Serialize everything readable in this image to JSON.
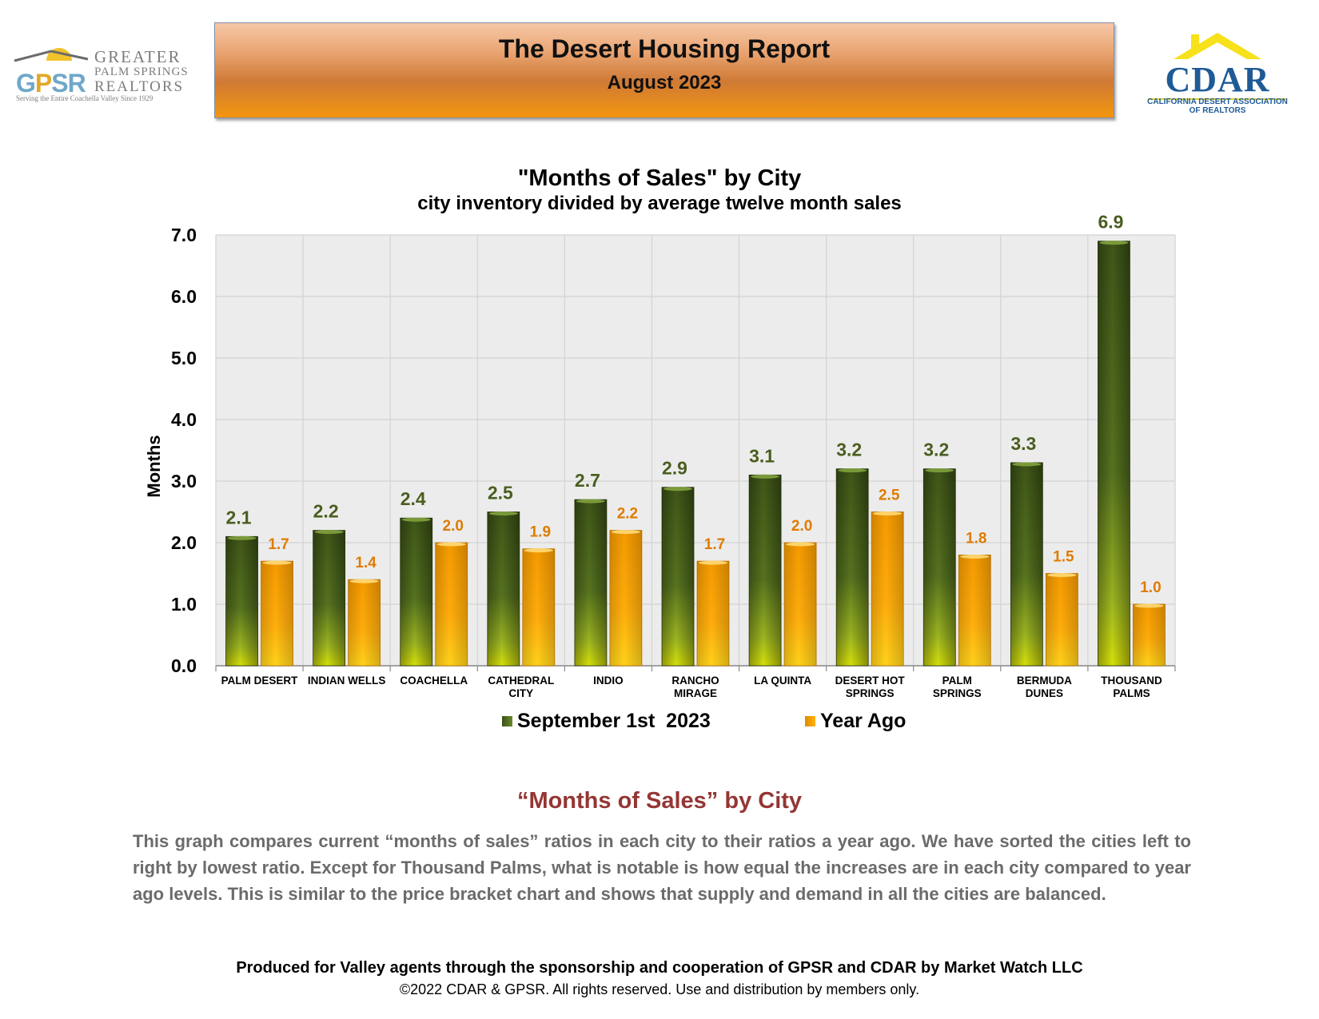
{
  "header": {
    "title": "The Desert Housing Report",
    "subtitle": "August 2023",
    "left_logo": {
      "letters": [
        "G",
        "P",
        "S",
        "R"
      ],
      "line1": "GREATER",
      "line2": "PALM SPRINGS",
      "line3": "REALTORS",
      "tagline": "Serving the Entire Coachella Valley Since 1929"
    },
    "right_logo": {
      "name": "CDAR",
      "full_name": "CALIFORNIA DESERT ASSOCIATION OF REALTORS"
    }
  },
  "colors": {
    "series_current": "#4f6a22",
    "series_year_ago": "#f5a000",
    "label_current": "#4a5e1f",
    "label_year_ago": "#e07b00",
    "heading_red": "#943634",
    "body_gray": "#6b6b6b"
  },
  "chart_data": {
    "type": "bar",
    "title": "\"Months of Sales\" by City",
    "subtitle": "city inventory divided by average twelve month sales",
    "xlabel": "",
    "ylabel": "Months",
    "ylim": [
      0,
      7
    ],
    "yticks": [
      "0.0",
      "1.0",
      "2.0",
      "3.0",
      "4.0",
      "5.0",
      "6.0",
      "7.0"
    ],
    "grid": true,
    "legend_position": "bottom",
    "categories": [
      [
        "PALM DESERT"
      ],
      [
        "INDIAN WELLS"
      ],
      [
        "COACHELLA"
      ],
      [
        "CATHEDRAL",
        "CITY"
      ],
      [
        "INDIO"
      ],
      [
        "RANCHO",
        "MIRAGE"
      ],
      [
        "LA QUINTA"
      ],
      [
        "DESERT HOT",
        "SPRINGS"
      ],
      [
        "PALM",
        "SPRINGS"
      ],
      [
        "BERMUDA",
        "DUNES"
      ],
      [
        "THOUSAND",
        "PALMS"
      ]
    ],
    "series": [
      {
        "name": "September 1st  2023",
        "values": [
          2.1,
          2.2,
          2.4,
          2.5,
          2.7,
          2.9,
          3.1,
          3.2,
          3.2,
          3.3,
          6.9
        ],
        "labels": [
          "2.1",
          "2.2",
          "2.4",
          "2.5",
          "2.7",
          "2.9",
          "3.1",
          "3.2",
          "3.2",
          "3.3",
          "6.9"
        ]
      },
      {
        "name": "Year Ago",
        "values": [
          1.7,
          1.4,
          2.0,
          1.9,
          2.2,
          1.7,
          2.0,
          2.5,
          1.8,
          1.5,
          1.0
        ],
        "labels": [
          "1.7",
          "1.4",
          "2.0",
          "1.9",
          "2.2",
          "1.7",
          "2.0",
          "2.5",
          "1.8",
          "1.5",
          "1.0"
        ]
      }
    ]
  },
  "description": {
    "heading": "“Months of Sales” by City",
    "body": "This graph compares current “months of sales” ratios in each city to their ratios a year ago. We have sorted the cities left to right by lowest ratio. Except for Thousand Palms, what is notable is how equal the increases are in each city compared to year ago levels. This is similar to the price bracket chart and shows that supply and demand in all the cities are balanced."
  },
  "footer": {
    "line1": "Produced for Valley agents through the sponsorship and cooperation of GPSR and CDAR by Market Watch LLC",
    "line2": "©2022 CDAR & GPSR.  All rights reserved.  Use and distribution by members only."
  }
}
